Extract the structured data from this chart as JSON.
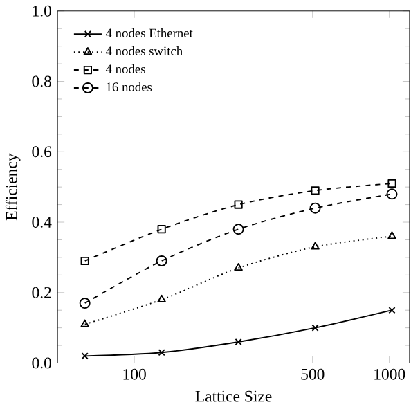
{
  "chart_data": {
    "type": "line",
    "xlabel": "Lattice Size",
    "ylabel": "Efficiency",
    "x": [
      64,
      128,
      256,
      512,
      1024
    ],
    "log": "x",
    "xlim": [
      50,
      1200
    ],
    "xticks": [
      100,
      500,
      1000
    ],
    "ylim": [
      0,
      1
    ],
    "yticks": [
      {
        "value": 0,
        "label": "0.0"
      },
      0.2,
      0.4,
      0.6,
      0.8,
      {
        "value": 1,
        "label": "1.0"
      }
    ],
    "legend": "top left",
    "grid": false,
    "series": [
      {
        "name": "4 nodes Ethernet",
        "color": "#000000",
        "marker": "cross",
        "line_style": "solid",
        "values": [
          0.02,
          0.03,
          0.06,
          0.1,
          0.15
        ]
      },
      {
        "name": "4 nodes switch",
        "color": "#000000",
        "marker": "triangle",
        "line_style": "dotted",
        "values": [
          0.11,
          0.18,
          0.27,
          0.33,
          0.36
        ]
      },
      {
        "name": "4 nodes",
        "color": "#000000",
        "marker": "square",
        "line_style": "dashed",
        "values": [
          0.29,
          0.38,
          0.45,
          0.49,
          0.51
        ]
      },
      {
        "name": "16 nodes",
        "color": "#000000",
        "marker": "circle",
        "line_style": "dashed",
        "values": [
          0.17,
          0.29,
          0.38,
          0.44,
          0.48
        ]
      }
    ]
  }
}
